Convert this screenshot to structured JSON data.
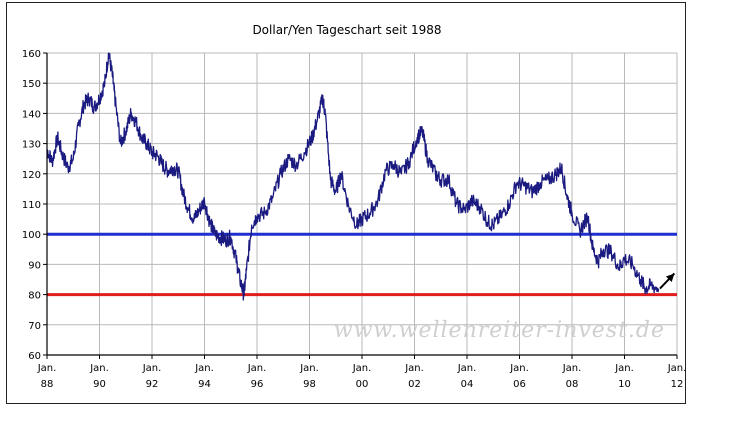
{
  "chart_data": {
    "type": "line",
    "title": "Dollar/Yen Tageschart seit 1988",
    "xlabel": "",
    "ylabel": "",
    "xlim": [
      1988,
      2012
    ],
    "ylim": [
      60,
      160
    ],
    "grid": true,
    "y_ticks": [
      60,
      70,
      80,
      90,
      100,
      110,
      120,
      130,
      140,
      150,
      160
    ],
    "x_ticks": [
      {
        "x": 1988,
        "top": "Jan.",
        "bottom": "88"
      },
      {
        "x": 1990,
        "top": "Jan.",
        "bottom": "90"
      },
      {
        "x": 1992,
        "top": "Jan.",
        "bottom": "92"
      },
      {
        "x": 1994,
        "top": "Jan.",
        "bottom": "94"
      },
      {
        "x": 1996,
        "top": "Jan.",
        "bottom": "96"
      },
      {
        "x": 1998,
        "top": "Jan.",
        "bottom": "98"
      },
      {
        "x": 2000,
        "top": "Jan.",
        "bottom": "00"
      },
      {
        "x": 2002,
        "top": "Jan.",
        "bottom": "02"
      },
      {
        "x": 2004,
        "top": "Jan.",
        "bottom": "04"
      },
      {
        "x": 2006,
        "top": "Jan.",
        "bottom": "06"
      },
      {
        "x": 2008,
        "top": "Jan.",
        "bottom": "08"
      },
      {
        "x": 2010,
        "top": "Jan.",
        "bottom": "10"
      },
      {
        "x": 2012,
        "top": "Jan.",
        "bottom": "12"
      }
    ],
    "series": [
      {
        "color": "#1a1a80",
        "x": [
          1988.0,
          1988.2,
          1988.4,
          1988.6,
          1988.8,
          1989.0,
          1989.2,
          1989.4,
          1989.6,
          1989.8,
          1990.0,
          1990.2,
          1990.35,
          1990.5,
          1990.6,
          1990.8,
          1991.0,
          1991.2,
          1991.4,
          1991.6,
          1991.8,
          1992.0,
          1992.2,
          1992.4,
          1992.6,
          1992.8,
          1993.0,
          1993.2,
          1993.4,
          1993.6,
          1993.8,
          1994.0,
          1994.2,
          1994.4,
          1994.6,
          1994.8,
          1995.0,
          1995.2,
          1995.35,
          1995.5,
          1995.6,
          1995.8,
          1996.0,
          1996.3,
          1996.6,
          1996.9,
          1997.2,
          1997.5,
          1997.8,
          1998.1,
          1998.3,
          1998.5,
          1998.6,
          1998.8,
          1999.0,
          1999.2,
          1999.5,
          1999.8,
          2000.0,
          2000.3,
          2000.6,
          2000.9,
          2001.2,
          2001.5,
          2001.8,
          2002.1,
          2002.3,
          2002.5,
          2002.8,
          2003.0,
          2003.3,
          2003.6,
          2003.9,
          2004.2,
          2004.5,
          2004.8,
          2005.0,
          2005.3,
          2005.6,
          2005.9,
          2006.2,
          2006.5,
          2006.8,
          2007.1,
          2007.4,
          2007.6,
          2007.8,
          2008.0,
          2008.3,
          2008.6,
          2008.8,
          2009.0,
          2009.2,
          2009.5,
          2009.8,
          2010.0,
          2010.3,
          2010.6,
          2010.8,
          2011.0,
          2011.3
        ],
        "y": [
          128,
          124,
          132,
          126,
          122,
          125,
          136,
          143,
          145,
          142,
          145,
          150,
          160,
          152,
          144,
          130,
          134,
          140,
          137,
          132,
          130,
          127,
          126,
          123,
          121,
          122,
          121,
          113,
          108,
          105,
          108,
          111,
          104,
          100,
          99,
          98,
          99,
          92,
          85,
          80,
          88,
          103,
          106,
          107,
          112,
          120,
          125,
          123,
          127,
          132,
          138,
          145,
          140,
          118,
          114,
          120,
          109,
          103,
          105,
          107,
          111,
          121,
          123,
          120,
          124,
          132,
          134,
          125,
          120,
          118,
          118,
          110,
          108,
          111,
          109,
          104,
          103,
          106,
          110,
          117,
          116,
          114,
          117,
          118,
          120,
          122,
          113,
          107,
          101,
          106,
          95,
          91,
          95,
          94,
          89,
          92,
          90,
          85,
          82,
          83,
          82
        ]
      }
    ],
    "reference_lines": [
      {
        "y": 100,
        "color": "#1f2fd0"
      },
      {
        "y": 80,
        "color": "#e01c1c"
      }
    ],
    "annotations": [
      {
        "type": "arrow",
        "from": [
          2011.35,
          82
        ],
        "to": [
          2011.9,
          87
        ],
        "color": "#000000"
      },
      {
        "type": "watermark",
        "text": "www.wellenreiter-invest.de"
      }
    ]
  }
}
